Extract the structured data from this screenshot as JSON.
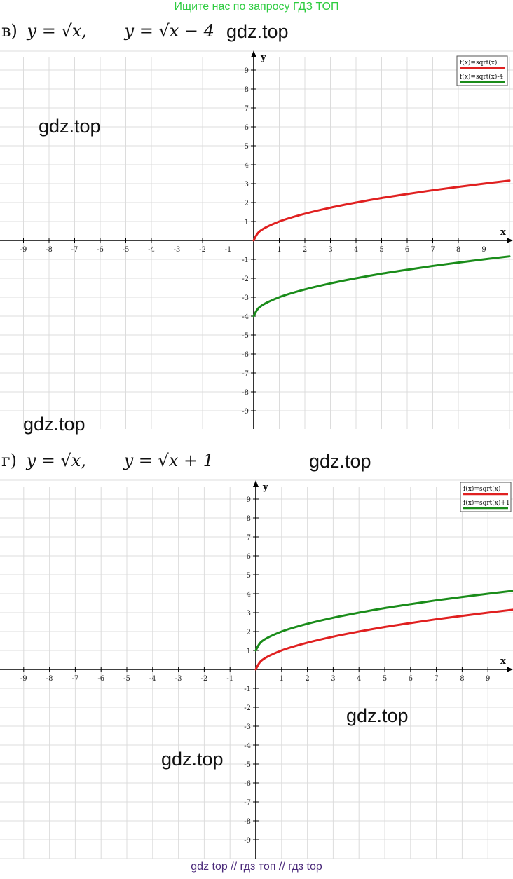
{
  "banner": "Ищите нас по запросу ГДЗ ТОП",
  "footer": "gdz top  //  гдз топ  //  гдз top",
  "watermarks": [
    "gdz.top",
    "gdz.top",
    "gdz.top",
    "gdz.top",
    "gdz.top",
    "gdz.top",
    "gdz.top"
  ],
  "sections": [
    {
      "letter": "в)",
      "eq1": "y = √x,",
      "eq2": "y = √x − 4"
    },
    {
      "letter": "г)",
      "eq1": "y = √x,",
      "eq2": "y = √x + 1"
    }
  ],
  "chart_data": [
    {
      "type": "line",
      "xlabel": "x",
      "ylabel": "y",
      "xlim": [
        -10,
        10
      ],
      "ylim": [
        -10,
        10
      ],
      "x_ticks": [
        "-9",
        "-8",
        "-7",
        "-6",
        "-5",
        "-4",
        "-3",
        "-2",
        "-1",
        "1",
        "2",
        "3",
        "4",
        "5",
        "6",
        "7",
        "8",
        "9"
      ],
      "y_ticks": [
        "9",
        "8",
        "7",
        "6",
        "5",
        "4",
        "3",
        "2",
        "1",
        "-1",
        "-2",
        "-3",
        "-4",
        "-5",
        "-6",
        "-7",
        "-8",
        "-9"
      ],
      "grid": true,
      "legend_position": "top-right",
      "series": [
        {
          "name": "f(x)=sqrt(x)",
          "color": "#e02020",
          "x": [
            0,
            0.25,
            1,
            2,
            3,
            4,
            5,
            6,
            7,
            8,
            9,
            10
          ],
          "y": [
            0,
            0.5,
            1,
            1.41,
            1.73,
            2,
            2.24,
            2.45,
            2.65,
            2.83,
            3,
            3.16
          ]
        },
        {
          "name": "f(x)=sqrt(x)-4",
          "color": "#1a8c1a",
          "x": [
            0,
            0.25,
            1,
            2,
            3,
            4,
            5,
            6,
            7,
            8,
            9,
            10
          ],
          "y": [
            -4,
            -3.5,
            -3,
            -2.59,
            -2.27,
            -2,
            -1.76,
            -1.55,
            -1.35,
            -1.17,
            -1,
            -0.84
          ]
        }
      ]
    },
    {
      "type": "line",
      "xlabel": "x",
      "ylabel": "y",
      "xlim": [
        -10,
        10
      ],
      "ylim": [
        -10,
        10
      ],
      "x_ticks": [
        "-9",
        "-8",
        "-7",
        "-6",
        "-5",
        "-4",
        "-3",
        "-2",
        "-1",
        "1",
        "2",
        "3",
        "4",
        "5",
        "6",
        "7",
        "8",
        "9"
      ],
      "y_ticks": [
        "9",
        "8",
        "7",
        "6",
        "5",
        "4",
        "3",
        "2",
        "1",
        "-1",
        "-2",
        "-3",
        "-4",
        "-5",
        "-6",
        "-7",
        "-8",
        "-9"
      ],
      "grid": true,
      "legend_position": "top-right",
      "series": [
        {
          "name": "f(x)=sqrt(x)",
          "color": "#e02020",
          "x": [
            0,
            0.25,
            1,
            2,
            3,
            4,
            5,
            6,
            7,
            8,
            9,
            10
          ],
          "y": [
            0,
            0.5,
            1,
            1.41,
            1.73,
            2,
            2.24,
            2.45,
            2.65,
            2.83,
            3,
            3.16
          ]
        },
        {
          "name": "f(x)=sqrt(x)+1",
          "color": "#1a8c1a",
          "x": [
            0,
            0.25,
            1,
            2,
            3,
            4,
            5,
            6,
            7,
            8,
            9,
            10
          ],
          "y": [
            1,
            1.5,
            2,
            2.41,
            2.73,
            3,
            3.24,
            3.45,
            3.65,
            3.83,
            4,
            4.16
          ]
        }
      ]
    }
  ]
}
